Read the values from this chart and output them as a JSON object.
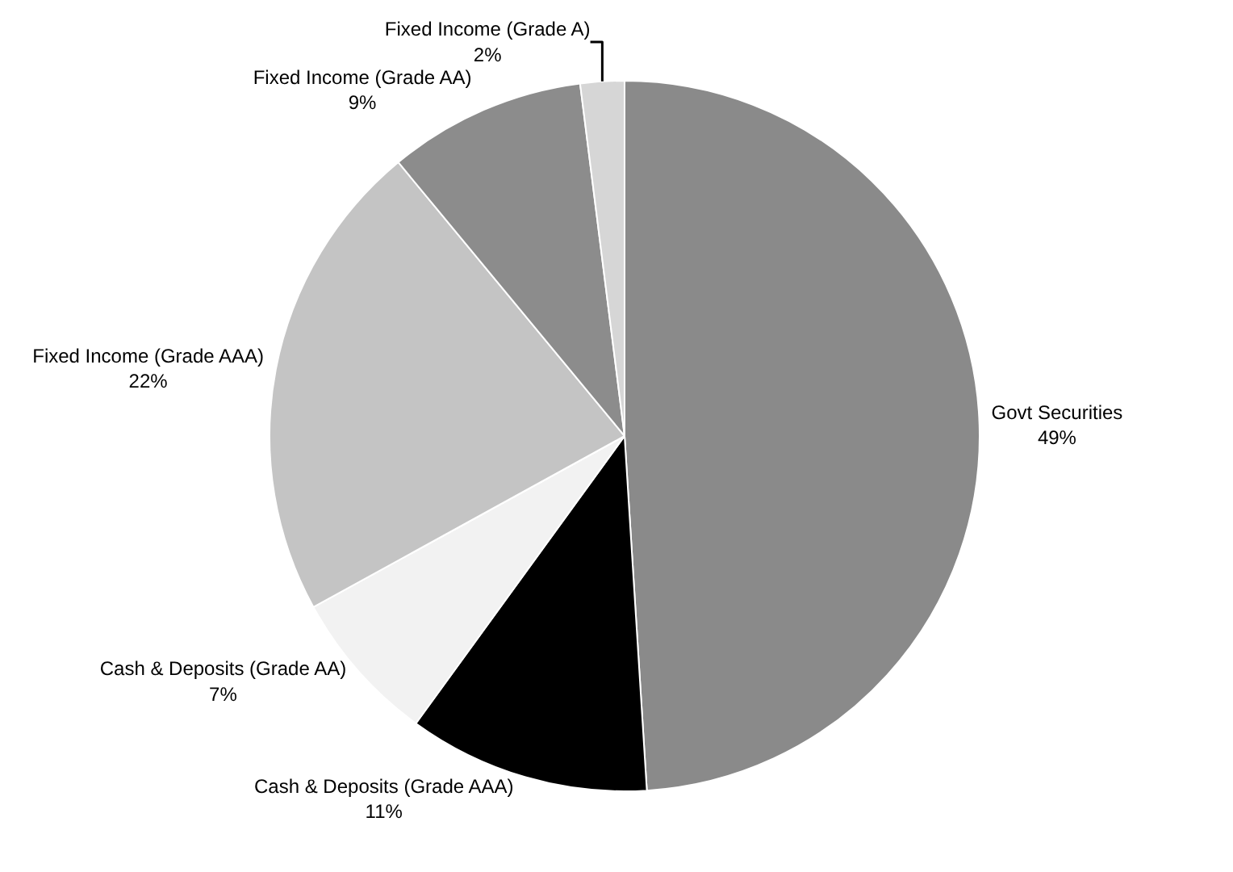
{
  "chart_data": {
    "type": "pie",
    "categories": [
      "Govt Securities",
      "Cash & Deposits (Grade AAA)",
      "Cash & Deposits (Grade AA)",
      "Fixed Income (Grade AAA)",
      "Fixed Income (Grade AA)",
      "Fixed Income (Grade A)"
    ],
    "values": [
      49,
      11,
      7,
      22,
      9,
      2
    ],
    "value_labels": [
      "49%",
      "11%",
      "7%",
      "22%",
      "9%",
      "2%"
    ],
    "colors": [
      "#8a8a8a",
      "#000000",
      "#f2f2f2",
      "#c4c4c4",
      "#8c8c8c",
      "#d6d6d6"
    ],
    "legend": false
  }
}
